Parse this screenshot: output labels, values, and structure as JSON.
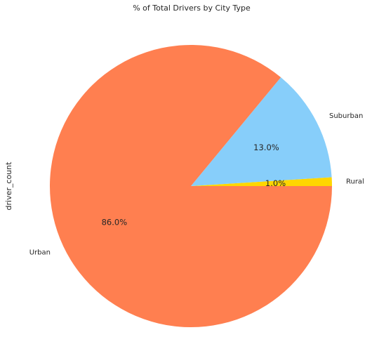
{
  "chart_data": {
    "type": "pie",
    "title": "% of Total Drivers by City Type",
    "ylabel": "driver_count",
    "slices": [
      {
        "label": "Rural",
        "value": 1.0,
        "pct_label": "1.0%",
        "color": "#FFD700"
      },
      {
        "label": "Suburban",
        "value": 13.0,
        "pct_label": "13.0%",
        "color": "#87CEFA"
      },
      {
        "label": "Urban",
        "value": 86.0,
        "pct_label": "86.0%",
        "color": "#FF7F50"
      }
    ],
    "start_angle_deg": 0,
    "direction": "counterclockwise",
    "legend": "none"
  }
}
